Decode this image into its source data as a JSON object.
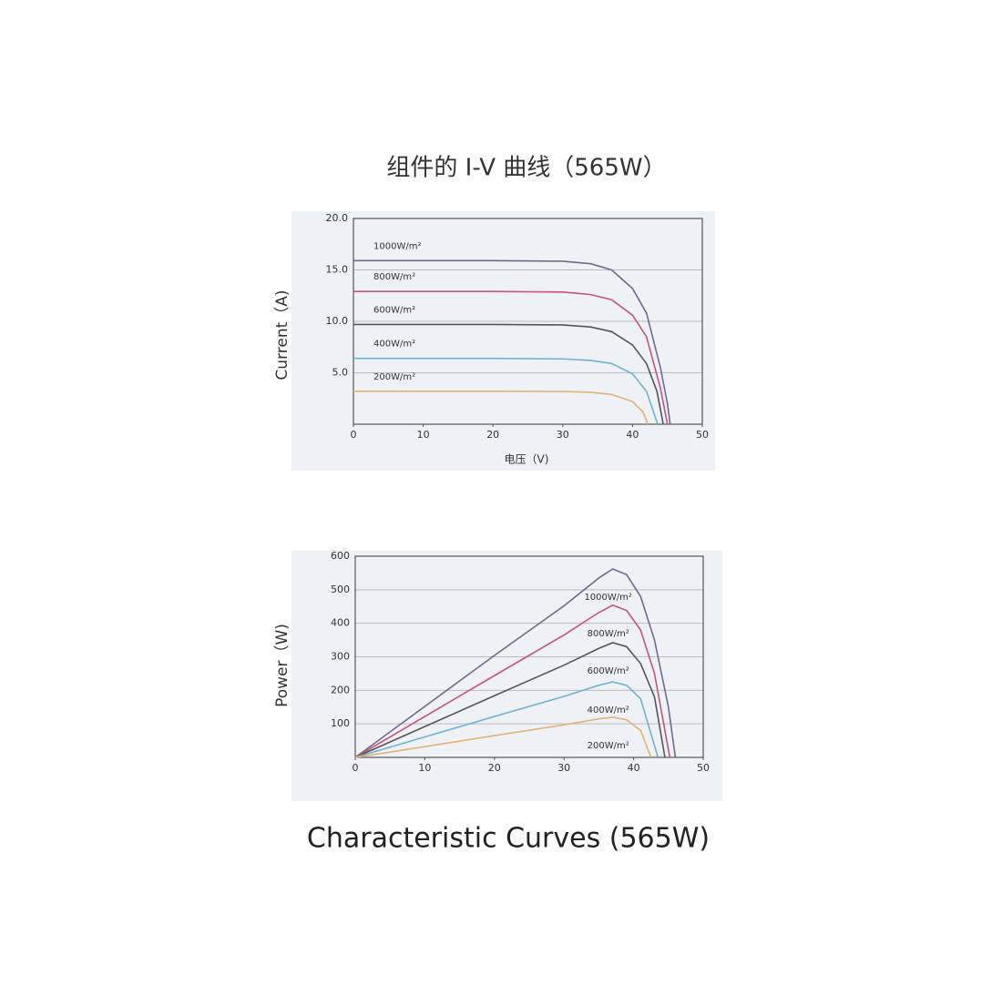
{
  "chart_data": [
    {
      "type": "line",
      "title": "组件的 I-V 曲线（565W）",
      "ylabel": "Current（A)",
      "xlabel": "电压（V)",
      "xlim": [
        0,
        50
      ],
      "ylim": [
        0,
        20
      ],
      "xticks": [
        0,
        10,
        20,
        30,
        40,
        50
      ],
      "yticks": [
        {
          "value": 5,
          "label": "5.0"
        },
        {
          "value": 10,
          "label": "10.0"
        },
        {
          "value": 15,
          "label": "15.0"
        },
        {
          "value": 20,
          "label": "20.0"
        }
      ],
      "grid": true,
      "series": [
        {
          "name": "1000W/m²",
          "color": "#6e6a8e",
          "x": [
            0,
            10,
            20,
            30,
            34,
            37,
            40,
            42,
            44,
            45,
            45.4
          ],
          "values": [
            15.9,
            15.9,
            15.9,
            15.85,
            15.6,
            15.0,
            13.2,
            10.8,
            5.5,
            2,
            0
          ]
        },
        {
          "name": "800W/m²",
          "color": "#c9527e",
          "x": [
            0,
            10,
            20,
            30,
            34,
            37,
            40,
            42,
            44,
            45
          ],
          "values": [
            12.9,
            12.9,
            12.9,
            12.85,
            12.6,
            12.1,
            10.6,
            8.5,
            3.5,
            0
          ]
        },
        {
          "name": "600W/m²",
          "color": "#555558",
          "x": [
            0,
            10,
            20,
            30,
            34,
            37,
            40,
            42,
            43.5,
            44.4
          ],
          "values": [
            9.7,
            9.7,
            9.7,
            9.65,
            9.45,
            9.0,
            7.7,
            5.9,
            3.2,
            0
          ]
        },
        {
          "name": "400W/m²",
          "color": "#6ab4d4",
          "x": [
            0,
            10,
            20,
            30,
            34,
            37,
            40,
            42,
            43.6
          ],
          "values": [
            6.4,
            6.4,
            6.4,
            6.35,
            6.2,
            5.9,
            4.9,
            3.2,
            0
          ]
        },
        {
          "name": "200W/m²",
          "color": "#e8b06a",
          "x": [
            0,
            10,
            20,
            30,
            34,
            37,
            40,
            41.5,
            42.2
          ],
          "values": [
            3.2,
            3.2,
            3.2,
            3.18,
            3.1,
            2.9,
            2.2,
            1.2,
            0
          ]
        }
      ]
    },
    {
      "type": "line",
      "ylabel": "Power（W)",
      "xlim": [
        0,
        50
      ],
      "ylim": [
        0,
        600
      ],
      "xticks": [
        0,
        10,
        20,
        30,
        40,
        50
      ],
      "yticks": [
        100,
        200,
        300,
        400,
        500,
        600
      ],
      "grid": true,
      "series": [
        {
          "name": "1000W/m²",
          "color": "#6e6a8e",
          "x": [
            0,
            10,
            20,
            30,
            35,
            37,
            39,
            41,
            43,
            45,
            46
          ],
          "values": [
            0,
            152,
            304,
            452,
            535,
            562,
            545,
            480,
            350,
            150,
            0
          ]
        },
        {
          "name": "800W/m²",
          "color": "#c9527e",
          "x": [
            0,
            10,
            20,
            30,
            35,
            37,
            39,
            41,
            43,
            45.2
          ],
          "values": [
            0,
            122,
            244,
            365,
            432,
            454,
            438,
            380,
            250,
            0
          ]
        },
        {
          "name": "600W/m²",
          "color": "#555558",
          "x": [
            0,
            10,
            20,
            30,
            35,
            37,
            39,
            41,
            43,
            44.5
          ],
          "values": [
            0,
            92,
            184,
            275,
            325,
            342,
            330,
            280,
            180,
            0
          ]
        },
        {
          "name": "400W/m²",
          "color": "#6ab4d4",
          "x": [
            0,
            10,
            20,
            30,
            35,
            37,
            39,
            41,
            43.5
          ],
          "values": [
            0,
            61,
            122,
            182,
            215,
            225,
            215,
            175,
            0
          ]
        },
        {
          "name": "200W/m²",
          "color": "#e8b06a",
          "x": [
            0,
            10,
            20,
            30,
            35,
            37,
            39,
            41,
            42.5
          ],
          "values": [
            0,
            32,
            65,
            97,
            115,
            120,
            112,
            80,
            0
          ]
        }
      ]
    }
  ],
  "caption": "Characteristic Curves (565W)"
}
